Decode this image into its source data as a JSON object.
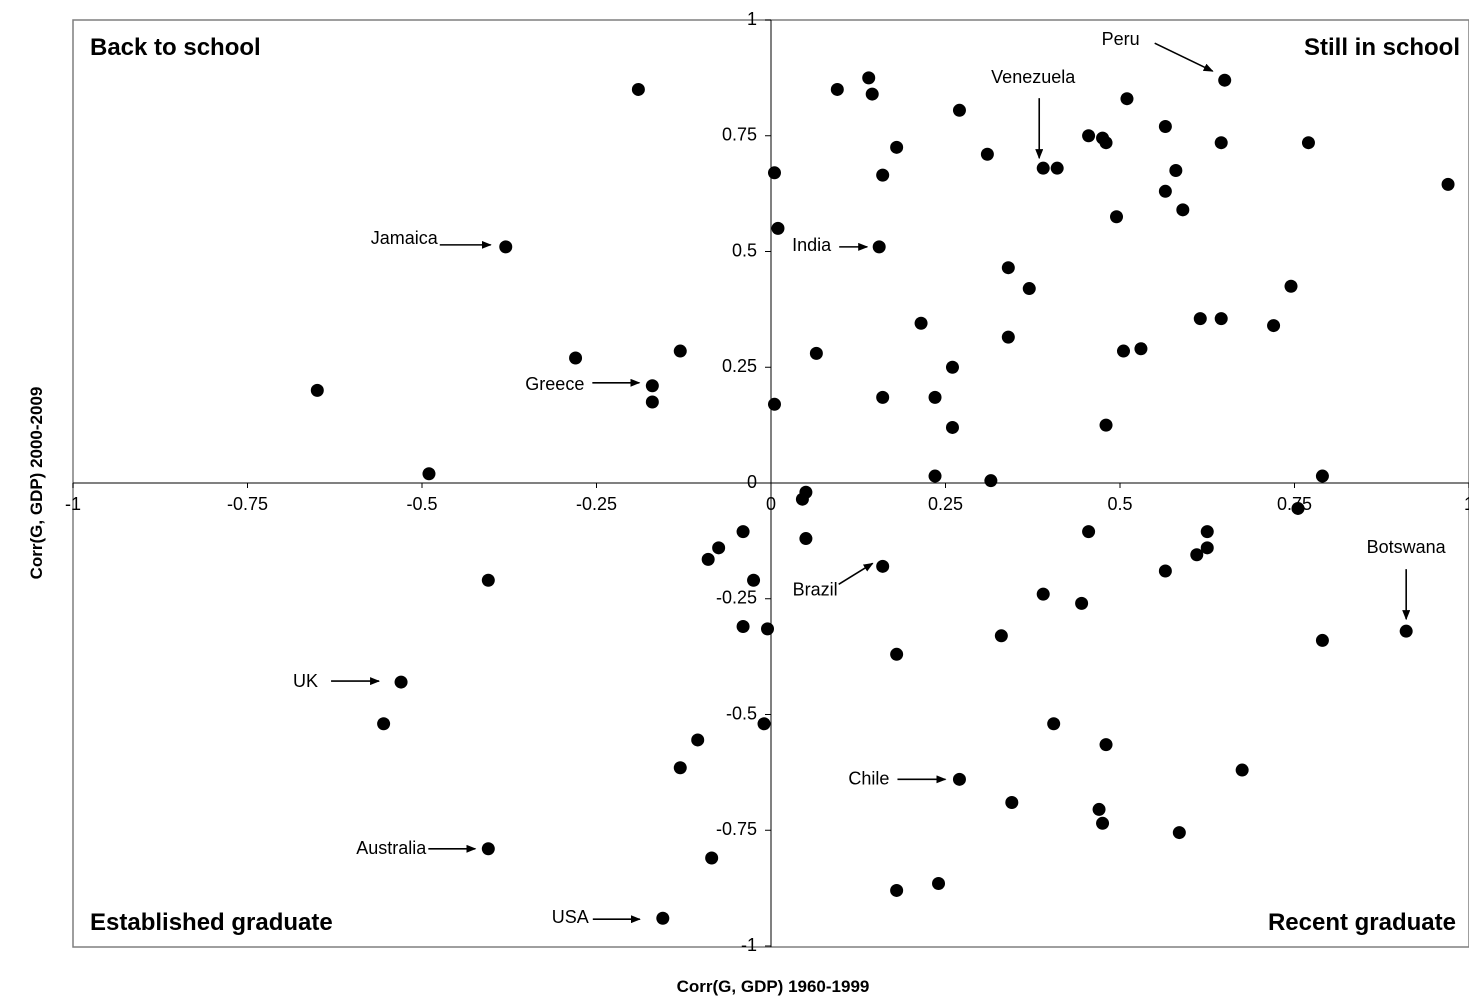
{
  "chart_data": {
    "type": "scatter",
    "xlabel": "Corr(G, GDP) 1960-1999",
    "ylabel": "Corr(G, GDP) 2000-2009",
    "xlim": [
      -1,
      1
    ],
    "ylim": [
      -1,
      1
    ],
    "x_ticks": [
      "-1",
      "-0.75",
      "-0.5",
      "-0.25",
      "0",
      "0.25",
      "0.5",
      "0.75",
      "1"
    ],
    "y_ticks": [
      "1",
      "0.75",
      "0.5",
      "0.25",
      "0",
      "-0.25",
      "-0.5",
      "-0.75",
      "-1"
    ],
    "grid": false,
    "quadrant_labels": {
      "top_left": "Back to school",
      "top_right": "Still in school",
      "bottom_left": "Established graduate",
      "bottom_right": "Recent graduate"
    },
    "annotations": [
      {
        "label": "Peru",
        "x": 0.65,
        "y": 0.87
      },
      {
        "label": "Venezuela",
        "x": 0.39,
        "y": 0.68
      },
      {
        "label": "Jamaica",
        "x": -0.38,
        "y": 0.51
      },
      {
        "label": "India",
        "x": 0.155,
        "y": 0.51
      },
      {
        "label": "Greece",
        "x": -0.17,
        "y": 0.21
      },
      {
        "label": "Brazil",
        "x": 0.16,
        "y": -0.18
      },
      {
        "label": "Botswana",
        "x": 0.91,
        "y": -0.32
      },
      {
        "label": "UK",
        "x": -0.53,
        "y": -0.43
      },
      {
        "label": "Chile",
        "x": 0.27,
        "y": -0.64
      },
      {
        "label": "Australia",
        "x": -0.405,
        "y": -0.79
      },
      {
        "label": "USA",
        "x": -0.155,
        "y": -0.94
      }
    ],
    "points": [
      {
        "x": -0.19,
        "y": 0.85
      },
      {
        "x": -0.38,
        "y": 0.51
      },
      {
        "x": -0.65,
        "y": 0.2
      },
      {
        "x": -0.28,
        "y": 0.27
      },
      {
        "x": -0.13,
        "y": 0.285
      },
      {
        "x": -0.17,
        "y": 0.21
      },
      {
        "x": -0.17,
        "y": 0.175
      },
      {
        "x": -0.49,
        "y": 0.02
      },
      {
        "x": 0.095,
        "y": 0.85
      },
      {
        "x": 0.14,
        "y": 0.875
      },
      {
        "x": 0.145,
        "y": 0.84
      },
      {
        "x": 0.27,
        "y": 0.805
      },
      {
        "x": 0.18,
        "y": 0.725
      },
      {
        "x": 0.31,
        "y": 0.71
      },
      {
        "x": 0.005,
        "y": 0.67
      },
      {
        "x": 0.16,
        "y": 0.665
      },
      {
        "x": 0.01,
        "y": 0.55
      },
      {
        "x": 0.155,
        "y": 0.51
      },
      {
        "x": 0.51,
        "y": 0.83
      },
      {
        "x": 0.65,
        "y": 0.87
      },
      {
        "x": 0.455,
        "y": 0.75
      },
      {
        "x": 0.475,
        "y": 0.745
      },
      {
        "x": 0.48,
        "y": 0.735
      },
      {
        "x": 0.565,
        "y": 0.77
      },
      {
        "x": 0.645,
        "y": 0.735
      },
      {
        "x": 0.77,
        "y": 0.735
      },
      {
        "x": 0.39,
        "y": 0.68
      },
      {
        "x": 0.41,
        "y": 0.68
      },
      {
        "x": 0.58,
        "y": 0.675
      },
      {
        "x": 0.565,
        "y": 0.63
      },
      {
        "x": 0.59,
        "y": 0.59
      },
      {
        "x": 0.495,
        "y": 0.575
      },
      {
        "x": 0.97,
        "y": 0.645
      },
      {
        "x": 0.34,
        "y": 0.465
      },
      {
        "x": 0.37,
        "y": 0.42
      },
      {
        "x": 0.745,
        "y": 0.425
      },
      {
        "x": 0.215,
        "y": 0.345
      },
      {
        "x": 0.34,
        "y": 0.315
      },
      {
        "x": 0.615,
        "y": 0.355
      },
      {
        "x": 0.645,
        "y": 0.355
      },
      {
        "x": 0.72,
        "y": 0.34
      },
      {
        "x": 0.505,
        "y": 0.285
      },
      {
        "x": 0.53,
        "y": 0.29
      },
      {
        "x": 0.065,
        "y": 0.28
      },
      {
        "x": 0.26,
        "y": 0.25
      },
      {
        "x": 0.235,
        "y": 0.185
      },
      {
        "x": 0.16,
        "y": 0.185
      },
      {
        "x": 0.005,
        "y": 0.17
      },
      {
        "x": 0.26,
        "y": 0.12
      },
      {
        "x": 0.48,
        "y": 0.125
      },
      {
        "x": 0.235,
        "y": 0.015
      },
      {
        "x": 0.315,
        "y": 0.005
      },
      {
        "x": 0.79,
        "y": 0.015
      },
      {
        "x": 0.05,
        "y": -0.02
      },
      {
        "x": 0.045,
        "y": -0.035
      },
      {
        "x": 0.05,
        "y": -0.12
      },
      {
        "x": -0.04,
        "y": -0.105
      },
      {
        "x": -0.075,
        "y": -0.14
      },
      {
        "x": -0.09,
        "y": -0.165
      },
      {
        "x": -0.025,
        "y": -0.21
      },
      {
        "x": -0.405,
        "y": -0.21
      },
      {
        "x": -0.04,
        "y": -0.31
      },
      {
        "x": -0.005,
        "y": -0.315
      },
      {
        "x": 0.16,
        "y": -0.18
      },
      {
        "x": 0.455,
        "y": -0.105
      },
      {
        "x": 0.625,
        "y": -0.105
      },
      {
        "x": 0.625,
        "y": -0.14
      },
      {
        "x": 0.61,
        "y": -0.155
      },
      {
        "x": 0.565,
        "y": -0.19
      },
      {
        "x": 0.755,
        "y": -0.055
      },
      {
        "x": 0.39,
        "y": -0.24
      },
      {
        "x": 0.445,
        "y": -0.26
      },
      {
        "x": 0.33,
        "y": -0.33
      },
      {
        "x": 0.18,
        "y": -0.37
      },
      {
        "x": 0.91,
        "y": -0.32
      },
      {
        "x": 0.79,
        "y": -0.34
      },
      {
        "x": -0.53,
        "y": -0.43
      },
      {
        "x": -0.555,
        "y": -0.52
      },
      {
        "x": -0.01,
        "y": -0.52
      },
      {
        "x": -0.105,
        "y": -0.555
      },
      {
        "x": -0.13,
        "y": -0.615
      },
      {
        "x": 0.405,
        "y": -0.52
      },
      {
        "x": 0.48,
        "y": -0.565
      },
      {
        "x": 0.27,
        "y": -0.64
      },
      {
        "x": 0.675,
        "y": -0.62
      },
      {
        "x": 0.345,
        "y": -0.69
      },
      {
        "x": 0.47,
        "y": -0.705
      },
      {
        "x": 0.475,
        "y": -0.735
      },
      {
        "x": 0.585,
        "y": -0.755
      },
      {
        "x": -0.405,
        "y": -0.79
      },
      {
        "x": -0.085,
        "y": -0.81
      },
      {
        "x": 0.24,
        "y": -0.865
      },
      {
        "x": 0.18,
        "y": -0.88
      },
      {
        "x": -0.155,
        "y": -0.94
      }
    ]
  }
}
